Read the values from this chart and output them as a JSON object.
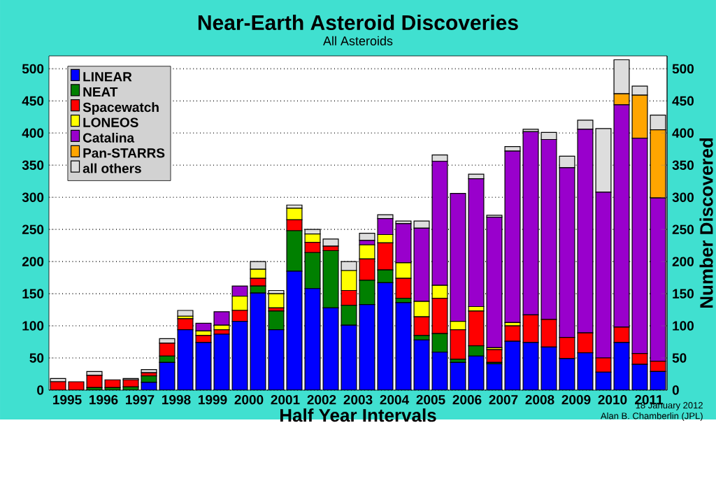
{
  "chart_data": {
    "type": "bar",
    "stacked": true,
    "title": "Near-Earth Asteroid Discoveries",
    "subtitle": "All Asteroids",
    "xlabel": "Half Year Intervals",
    "y2label": "Number Discovered",
    "x": [
      1995.25,
      1995.75,
      1996.25,
      1996.75,
      1997.25,
      1997.75,
      1998.25,
      1998.75,
      1999.25,
      1999.75,
      2000.25,
      2000.75,
      2001.25,
      2001.75,
      2002.25,
      2002.75,
      2003.25,
      2003.75,
      2004.25,
      2004.75,
      2005.25,
      2005.75,
      2006.25,
      2006.75,
      2007.25,
      2007.75,
      2008.25,
      2008.75,
      2009.25,
      2009.75,
      2010.25,
      2010.75,
      2011.25,
      2011.75
    ],
    "xlim": [
      1995,
      2012
    ],
    "xticks": [
      {
        "value": 1995.5,
        "label": "1995"
      },
      {
        "value": 1996.5,
        "label": "1996"
      },
      {
        "value": 1997.5,
        "label": "1997"
      },
      {
        "value": 1998.5,
        "label": "1998"
      },
      {
        "value": 1999.5,
        "label": "1999"
      },
      {
        "value": 2000.5,
        "label": "2000"
      },
      {
        "value": 2001.5,
        "label": "2001"
      },
      {
        "value": 2002.5,
        "label": "2002"
      },
      {
        "value": 2003.5,
        "label": "2003"
      },
      {
        "value": 2004.5,
        "label": "2004"
      },
      {
        "value": 2005.5,
        "label": "2005"
      },
      {
        "value": 2006.5,
        "label": "2006"
      },
      {
        "value": 2007.5,
        "label": "2007"
      },
      {
        "value": 2008.5,
        "label": "2008"
      },
      {
        "value": 2009.5,
        "label": "2009"
      },
      {
        "value": 2010.5,
        "label": "2010"
      },
      {
        "value": 2011.5,
        "label": "2011"
      }
    ],
    "ylim": [
      0,
      520
    ],
    "yticks": [
      0,
      50,
      100,
      150,
      200,
      250,
      300,
      350,
      400,
      450,
      500
    ],
    "y2lim": [
      0,
      520
    ],
    "y2ticks": [
      0,
      50,
      100,
      150,
      200,
      250,
      300,
      350,
      400,
      450,
      500
    ],
    "grid": "y",
    "legend": "top left",
    "series": [
      {
        "name": "LINEAR",
        "color": "#0000ff",
        "values": [
          0,
          0,
          0,
          0,
          0,
          12,
          43,
          94,
          74,
          87,
          107,
          151,
          94,
          185,
          158,
          128,
          101,
          133,
          167,
          136,
          78,
          59,
          43,
          53,
          41,
          76,
          74,
          67,
          49,
          58,
          28,
          74,
          40,
          29
        ]
      },
      {
        "name": "NEAT",
        "color": "#008000",
        "values": [
          0,
          0,
          4,
          4,
          5,
          10,
          10,
          0,
          0,
          0,
          0,
          11,
          29,
          63,
          56,
          89,
          31,
          38,
          20,
          7,
          7,
          29,
          5,
          16,
          2,
          0,
          0,
          0,
          0,
          0,
          0,
          0,
          0,
          0
        ]
      },
      {
        "name": "Spacewatch",
        "color": "#ff0000",
        "values": [
          13,
          13,
          19,
          12,
          11,
          5,
          20,
          17,
          11,
          7,
          17,
          12,
          5,
          17,
          16,
          7,
          23,
          33,
          42,
          31,
          29,
          55,
          46,
          54,
          20,
          24,
          43,
          43,
          33,
          31,
          22,
          24,
          17,
          16
        ]
      },
      {
        "name": "LONEOS",
        "color": "#ffff00",
        "values": [
          0,
          0,
          0,
          0,
          0,
          0,
          0,
          4,
          7,
          7,
          22,
          14,
          22,
          18,
          13,
          0,
          31,
          22,
          13,
          24,
          24,
          20,
          13,
          7,
          3,
          5,
          0,
          0,
          0,
          0,
          0,
          0,
          0,
          0
        ]
      },
      {
        "name": "Catalina",
        "color": "#9900cc",
        "values": [
          0,
          0,
          0,
          0,
          0,
          0,
          0,
          0,
          12,
          21,
          16,
          0,
          0,
          0,
          0,
          0,
          0,
          7,
          25,
          61,
          114,
          193,
          199,
          199,
          203,
          267,
          285,
          280,
          264,
          317,
          258,
          346,
          335,
          254
        ]
      },
      {
        "name": "Pan-STARRS",
        "color": "#ffa500",
        "values": [
          0,
          0,
          0,
          0,
          0,
          0,
          0,
          0,
          0,
          0,
          0,
          0,
          0,
          0,
          0,
          0,
          0,
          0,
          0,
          0,
          0,
          0,
          0,
          0,
          0,
          0,
          0,
          0,
          0,
          0,
          0,
          17,
          67,
          106
        ]
      },
      {
        "name": "all others",
        "color": "#dddddd",
        "values": [
          5,
          0,
          6,
          0,
          2,
          5,
          7,
          9,
          0,
          0,
          0,
          12,
          5,
          5,
          7,
          11,
          14,
          11,
          6,
          4,
          11,
          10,
          0,
          7,
          3,
          7,
          4,
          11,
          18,
          14,
          99,
          53,
          14,
          23
        ]
      }
    ],
    "annotations": [
      "18 January 2012",
      "Alan B. Chamberlin (JPL)"
    ]
  }
}
